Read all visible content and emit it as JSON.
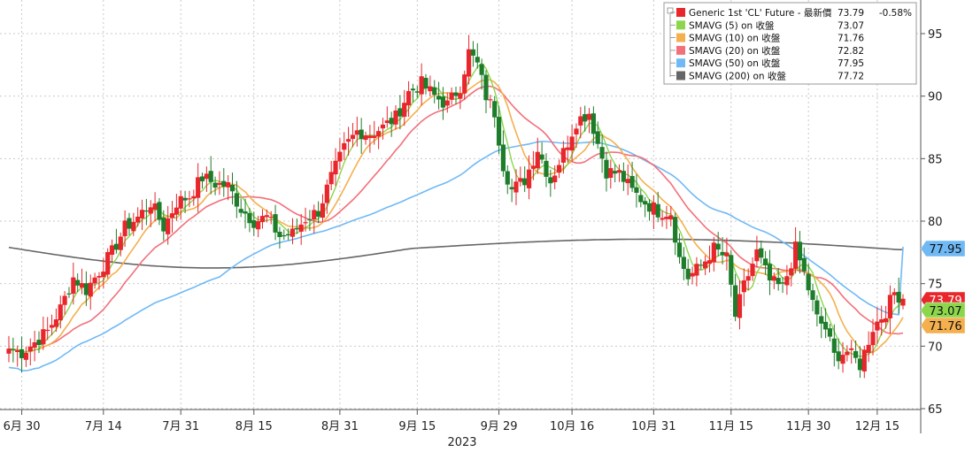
{
  "chart_data": {
    "type": "candlestick",
    "y_axis": {
      "ylim": [
        64,
        98
      ],
      "ticks": [
        65,
        70,
        75,
        80,
        85,
        90,
        95
      ],
      "side": "right"
    },
    "x_axis": {
      "ticks": [
        "6月 30",
        "7月 14",
        "7月 31",
        "8月 15",
        "8月 31",
        "9月 15",
        "9月 29",
        "10月 16",
        "10月 31",
        "11月 15",
        "11月 30",
        "12月 15"
      ],
      "year_label": "2023"
    },
    "grid": true,
    "legend": {
      "placement": "top-right",
      "items": [
        {
          "label": "Generic 1st 'CL' Future - 最新價",
          "value": "73.79",
          "change": "-0.58%",
          "color": "#e8262b"
        },
        {
          "label": "SMAVG (5)  on 收盤",
          "value": "73.07",
          "color": "#8cd64b"
        },
        {
          "label": "SMAVG (10)  on 收盤",
          "value": "71.76",
          "color": "#f4b04f"
        },
        {
          "label": "SMAVG (20)  on 收盤",
          "value": "72.82",
          "color": "#f2707a"
        },
        {
          "label": "SMAVG (50)  on 收盤",
          "value": "77.95",
          "color": "#6fb9f5"
        },
        {
          "label": "SMAVG (200)  on 收盤",
          "value": "77.72",
          "color": "#666666"
        }
      ]
    },
    "badges": [
      {
        "value": "77.95",
        "color": "#6fb9f5",
        "text_color": "#111"
      },
      {
        "value": "73.79",
        "color": "#e8262b",
        "text_color": "#ffffff"
      },
      {
        "value": "73.07",
        "color": "#8cd64b",
        "text_color": "#111"
      },
      {
        "value": "71.76",
        "color": "#f4b04f",
        "text_color": "#111"
      }
    ],
    "up_color": "#e8262b",
    "down_color": "#1e7d2a",
    "anchor_closes": [
      [
        0,
        69.8
      ],
      [
        3,
        69.5
      ],
      [
        6,
        70.3
      ],
      [
        9,
        71.2
      ],
      [
        12,
        73.0
      ],
      [
        15,
        75.5
      ],
      [
        18,
        74.5
      ],
      [
        21,
        76.0
      ],
      [
        24,
        77.5
      ],
      [
        27,
        79.5
      ],
      [
        30,
        80.3
      ],
      [
        33,
        81.5
      ],
      [
        36,
        79.5
      ],
      [
        39,
        81.5
      ],
      [
        42,
        82.0
      ],
      [
        45,
        83.5
      ],
      [
        48,
        83.0
      ],
      [
        51,
        82.8
      ],
      [
        54,
        81.0
      ],
      [
        57,
        80.0
      ],
      [
        60,
        80.3
      ],
      [
        63,
        78.8
      ],
      [
        66,
        79.0
      ],
      [
        69,
        80.2
      ],
      [
        72,
        80.8
      ],
      [
        75,
        83.5
      ],
      [
        78,
        85.8
      ],
      [
        81,
        87.2
      ],
      [
        84,
        87.0
      ],
      [
        87,
        87.5
      ],
      [
        90,
        88.3
      ],
      [
        93,
        90.3
      ],
      [
        96,
        91.0
      ],
      [
        99,
        90.0
      ],
      [
        102,
        89.3
      ],
      [
        105,
        90.8
      ],
      [
        107,
        93.5
      ],
      [
        109,
        92.5
      ],
      [
        111,
        90.0
      ],
      [
        113,
        88.7
      ],
      [
        115,
        84.5
      ],
      [
        117,
        82.5
      ],
      [
        120,
        83.3
      ],
      [
        123,
        85.8
      ],
      [
        126,
        83.2
      ],
      [
        129,
        85.5
      ],
      [
        132,
        88.0
      ],
      [
        135,
        88.7
      ],
      [
        137,
        86.2
      ],
      [
        139,
        84.0
      ],
      [
        142,
        83.8
      ],
      [
        145,
        82.4
      ],
      [
        148,
        81.5
      ],
      [
        151,
        80.8
      ],
      [
        154,
        80.7
      ],
      [
        156,
        77.0
      ],
      [
        158,
        75.5
      ],
      [
        161,
        76.4
      ],
      [
        164,
        77.8
      ],
      [
        167,
        77.0
      ],
      [
        169,
        72.4
      ],
      [
        171,
        74.8
      ],
      [
        174,
        77.5
      ],
      [
        177,
        75.2
      ],
      [
        180,
        74.6
      ],
      [
        183,
        77.8
      ],
      [
        185,
        75.8
      ],
      [
        188,
        72.2
      ],
      [
        190,
        71.4
      ],
      [
        192,
        69.2
      ],
      [
        195,
        69.6
      ],
      [
        198,
        68.5
      ],
      [
        201,
        71.5
      ],
      [
        204,
        72.8
      ],
      [
        206,
        74.3
      ],
      [
        208,
        73.79
      ]
    ]
  }
}
